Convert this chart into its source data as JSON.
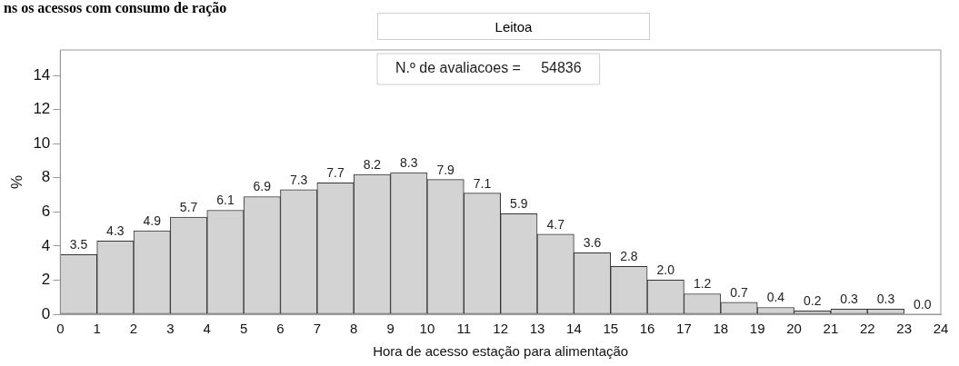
{
  "chart_data": {
    "type": "histogram",
    "title": "ns os acessos com consumo de ração",
    "subtitle": "Leitoa",
    "xlabel": "Hora de acesso estação para alimentação",
    "ylabel": "%",
    "bins": [
      0,
      1,
      2,
      3,
      4,
      5,
      6,
      7,
      8,
      9,
      10,
      11,
      12,
      13,
      14,
      15,
      16,
      17,
      18,
      19,
      20,
      21,
      22,
      23,
      24
    ],
    "values": [
      3.5,
      4.3,
      4.9,
      5.7,
      6.1,
      6.9,
      7.3,
      7.7,
      8.2,
      8.3,
      7.9,
      7.1,
      5.9,
      4.7,
      3.6,
      2.8,
      2.0,
      1.2,
      0.7,
      0.4,
      0.2,
      0.3,
      0.3,
      0.0
    ],
    "color": "#d3d3d3",
    "xlim": [
      0,
      24
    ],
    "xticks": [
      0,
      1,
      2,
      3,
      4,
      5,
      6,
      7,
      8,
      9,
      10,
      11,
      12,
      13,
      14,
      15,
      16,
      17,
      18,
      19,
      20,
      21,
      22,
      23,
      24
    ],
    "value_labels": [
      "3.5",
      "4.3",
      "4.9",
      "5.7",
      "6.1",
      "6.9",
      "7.3",
      "7.7",
      "8.2",
      "8.3",
      "7.9",
      "7.1",
      "5.9",
      "4.7",
      "3.6",
      "2.8",
      "2.0",
      "1.2",
      "0.7",
      "0.4",
      "0.2",
      "0.3",
      "0.3",
      "0.0"
    ],
    "ylim": [
      0,
      15.5
    ],
    "yticks": [
      0,
      2,
      4,
      6,
      8,
      10,
      12,
      14
    ],
    "grid": false,
    "legend": false,
    "annotations": [
      "N.º de avaliacoes =     54836"
    ]
  }
}
